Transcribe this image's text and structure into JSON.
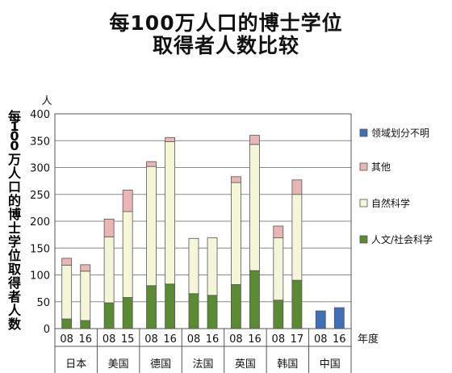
{
  "title_lines": [
    "每100万人口的博士学位",
    "取得者人数比较"
  ],
  "chart_data": {
    "type": "bar",
    "stacked": true,
    "ylabel": "每100万人口的博士学位取得者人数",
    "yunit": "人",
    "xlabel": "年度",
    "ylim": [
      0,
      400
    ],
    "yticks": [
      0,
      50,
      100,
      150,
      200,
      250,
      300,
      350,
      400
    ],
    "grid": true,
    "legend_position": "right",
    "categories": [
      "08",
      "16",
      "08",
      "15",
      "08",
      "16",
      "08",
      "16",
      "08",
      "16",
      "08",
      "17",
      "08",
      "16"
    ],
    "groups": [
      {
        "name": "日本",
        "span": 2
      },
      {
        "name": "美国",
        "span": 2
      },
      {
        "name": "德国",
        "span": 2
      },
      {
        "name": "法国",
        "span": 2
      },
      {
        "name": "英国",
        "span": 2
      },
      {
        "name": "韩国",
        "span": 2
      },
      {
        "name": "中国",
        "span": 2
      }
    ],
    "series": [
      {
        "name": "人文/社会科学",
        "color": "#5a8a32",
        "values": [
          18,
          15,
          48,
          58,
          80,
          83,
          65,
          62,
          82,
          108,
          53,
          90,
          0,
          0
        ]
      },
      {
        "name": "自然科学",
        "color": "#f5f5d8",
        "values": [
          100,
          92,
          123,
          160,
          222,
          265,
          103,
          107,
          190,
          235,
          116,
          160,
          0,
          0
        ]
      },
      {
        "name": "其他",
        "color": "#eab5b5",
        "values": [
          13,
          12,
          33,
          40,
          9,
          8,
          0,
          0,
          11,
          17,
          22,
          27,
          0,
          0
        ]
      },
      {
        "name": "领域划分不明",
        "color": "#3f6fb5",
        "values": [
          0,
          0,
          0,
          0,
          0,
          0,
          0,
          0,
          0,
          0,
          0,
          0,
          33,
          39
        ]
      }
    ],
    "legend_order": [
      "领域划分不明",
      "其他",
      "自然科学",
      "人文/社会科学"
    ]
  }
}
